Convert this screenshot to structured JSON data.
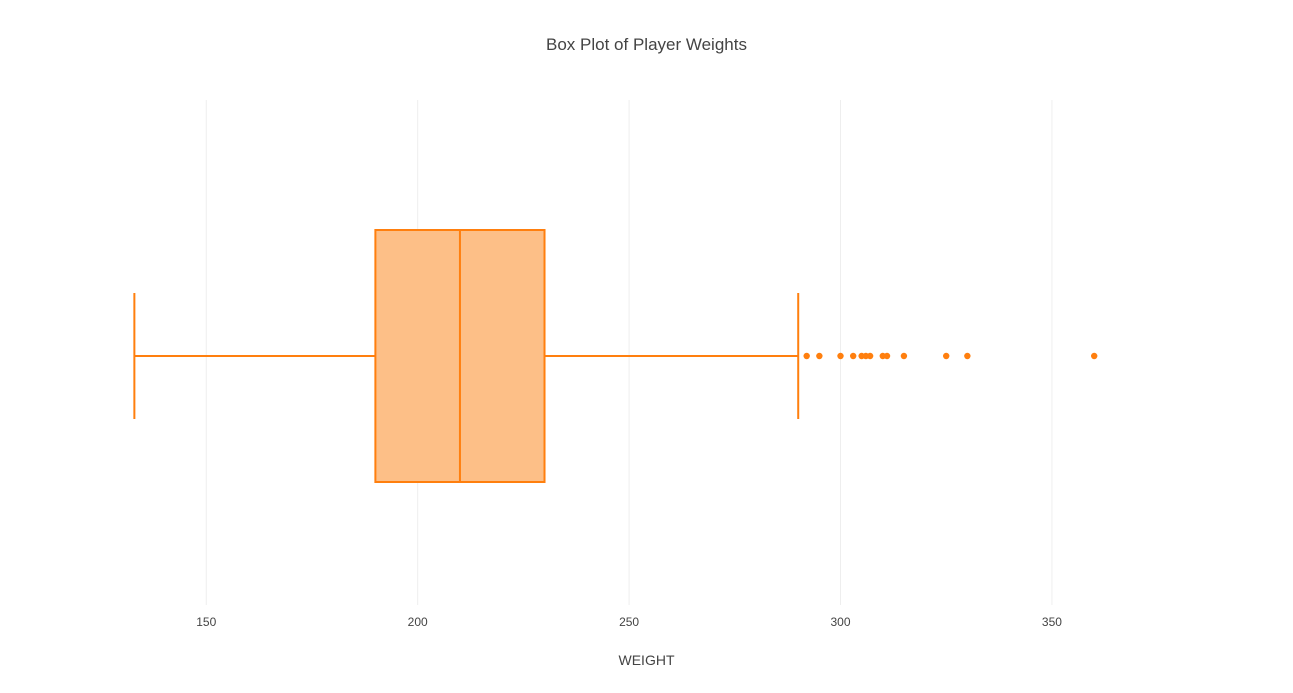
{
  "chart_data": {
    "type": "box",
    "title": "Box Plot of Player Weights",
    "xlabel": "WEIGHT",
    "ylabel": "",
    "orientation": "horizontal",
    "xlim": [
      127,
      381
    ],
    "x_ticks": [
      150,
      200,
      250,
      300,
      350
    ],
    "grid": "vertical",
    "color": "#ff7f0e",
    "fill_color": "#fdbf87",
    "box": {
      "lower_fence": 133,
      "q1": 190,
      "median": 210,
      "q3": 230,
      "upper_fence": 290
    },
    "outliers": [
      292,
      295,
      300,
      303,
      305,
      306,
      307,
      310,
      311,
      315,
      325,
      330,
      360
    ]
  }
}
